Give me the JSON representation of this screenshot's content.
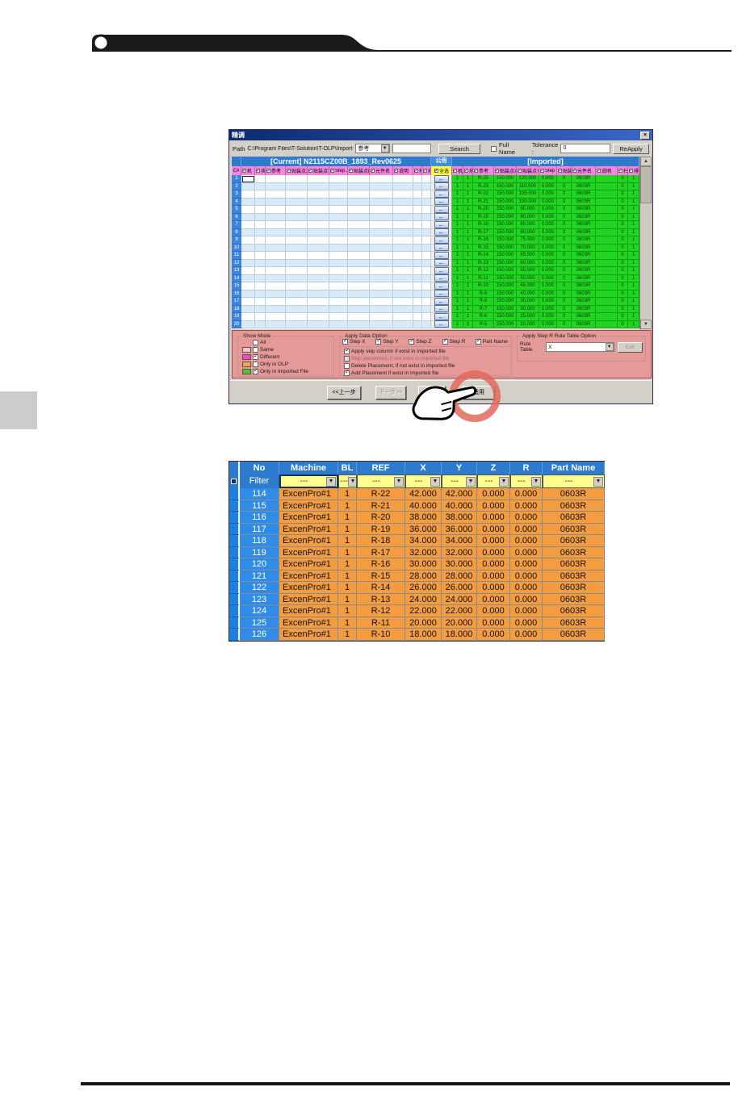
{
  "colors": {
    "imported_green": "#21d421",
    "different_magenta": "#ff44cc",
    "same_pink": "#ffc0cb",
    "only_olp_orange": "#f4a742",
    "result_row_orange": "#f49d40",
    "header_blue": "#2e7bcd",
    "filter_yellow": "#ffff8e",
    "column_header_pink": "#f886e0",
    "annotation_red": "#e2685c"
  },
  "dialog": {
    "title": "精调",
    "close_label": "×",
    "path_label": "Path",
    "path_value": "C:\\Program Files\\T-Solution\\T-OLP\\ImportStep.txt",
    "combo_value": "参考",
    "search_button": "Search",
    "full_name_label": "Full Name",
    "tolerance_label": "Tolerance :",
    "tolerance_value": "0",
    "reapply_button": "ReApply",
    "current_header": "[Current] N2115CZ00B_1893_Rev0625",
    "common_header": "公用",
    "imported_header": "[Imported]",
    "corner_label": "C#",
    "select_all_label": "全选",
    "column_labels": [
      "机",
      "块",
      "参考",
      "贴装点X",
      "贴装点Y",
      "Step Z",
      "贴装点R",
      "元件名",
      "说明",
      "扫",
      "排"
    ],
    "row_count": 20,
    "imported_rows": [
      [
        "1",
        "1",
        "R-25",
        "150.000",
        "120.000",
        "0.000",
        "0",
        "0603R",
        "",
        "0",
        "1"
      ],
      [
        "1",
        "1",
        "R-23",
        "150.000",
        "110.000",
        "0.000",
        "0",
        "0603R",
        "",
        "0",
        "1"
      ],
      [
        "1",
        "1",
        "R-22",
        "150.000",
        "105.000",
        "0.000",
        "0",
        "0603R",
        "",
        "0",
        "1"
      ],
      [
        "1",
        "1",
        "R-21",
        "150.000",
        "100.000",
        "0.000",
        "0",
        "0603R",
        "",
        "0",
        "1"
      ],
      [
        "1",
        "1",
        "R-20",
        "150.000",
        "95.000",
        "0.000",
        "0",
        "0603R",
        "",
        "0",
        "1"
      ],
      [
        "1",
        "1",
        "R-19",
        "150.000",
        "90.000",
        "0.000",
        "0",
        "0603R",
        "",
        "0",
        "1"
      ],
      [
        "1",
        "1",
        "R-18",
        "150.000",
        "85.000",
        "0.000",
        "0",
        "0603R",
        "",
        "0",
        "1"
      ],
      [
        "1",
        "1",
        "R-17",
        "150.000",
        "80.000",
        "0.000",
        "0",
        "0603R",
        "",
        "0",
        "1"
      ],
      [
        "1",
        "1",
        "R-16",
        "150.000",
        "75.000",
        "0.000",
        "0",
        "0603R",
        "",
        "0",
        "1"
      ],
      [
        "1",
        "1",
        "R-15",
        "150.000",
        "70.000",
        "0.000",
        "0",
        "0603R",
        "",
        "0",
        "1"
      ],
      [
        "1",
        "1",
        "R-14",
        "150.000",
        "65.000",
        "0.000",
        "0",
        "0603R",
        "",
        "0",
        "1"
      ],
      [
        "1",
        "1",
        "R-13",
        "150.000",
        "60.000",
        "0.000",
        "0",
        "0603R",
        "",
        "0",
        "1"
      ],
      [
        "1",
        "1",
        "R-12",
        "150.000",
        "55.000",
        "0.000",
        "0",
        "0603R",
        "",
        "0",
        "1"
      ],
      [
        "1",
        "1",
        "R-11",
        "150.000",
        "50.000",
        "0.000",
        "0",
        "0603R",
        "",
        "0",
        "1"
      ],
      [
        "1",
        "1",
        "R-10",
        "150.000",
        "45.000",
        "0.000",
        "0",
        "0603R",
        "",
        "0",
        "1"
      ],
      [
        "1",
        "1",
        "R-9",
        "150.000",
        "40.000",
        "0.000",
        "0",
        "0603R",
        "",
        "0",
        "1"
      ],
      [
        "1",
        "1",
        "R-8",
        "150.000",
        "35.000",
        "0.000",
        "0",
        "0603R",
        "",
        "0",
        "1"
      ],
      [
        "1",
        "1",
        "R-7",
        "150.000",
        "30.000",
        "0.000",
        "0",
        "0603R",
        "",
        "0",
        "1"
      ],
      [
        "1",
        "1",
        "R-6",
        "150.000",
        "25.000",
        "0.000",
        "0",
        "0603R",
        "",
        "0",
        "1"
      ],
      [
        "1",
        "1",
        "R-5",
        "150.000",
        "20.000",
        "0.000",
        "0",
        "0603R",
        "",
        "0",
        "1"
      ]
    ],
    "show_mode": {
      "legend": "Show Mode",
      "items": [
        {
          "label": "All",
          "checked": false,
          "swatch": null
        },
        {
          "label": "Same",
          "checked": false,
          "swatch": "#ffc0cb"
        },
        {
          "label": "Different",
          "checked": true,
          "swatch": "#ff44cc"
        },
        {
          "label": "Only in OLP",
          "checked": false,
          "swatch": "#f4a742"
        },
        {
          "label": "Only in Imported File",
          "checked": true,
          "swatch": "#55c42a"
        }
      ]
    },
    "apply_data_option": {
      "legend": "Apply Data Option",
      "step_checks": [
        {
          "label": "Step X",
          "checked": true
        },
        {
          "label": "Step Y",
          "checked": true
        },
        {
          "label": "Step Z",
          "checked": true
        },
        {
          "label": "Step R",
          "checked": true
        },
        {
          "label": "Part Name",
          "checked": true
        }
      ],
      "options": [
        {
          "label": "Apply skip column if exist in imported file",
          "checked": true,
          "enabled": true
        },
        {
          "label": "Skip placement, if not exist in imported file",
          "checked": false,
          "enabled": false
        },
        {
          "label": "Delete Placement, if not exist in imported file",
          "checked": false,
          "enabled": true
        },
        {
          "label": "Add Placement if exist in imported file",
          "checked": true,
          "enabled": true
        }
      ]
    },
    "rule_option": {
      "legend": "Apply Step R Rule Table Option",
      "rule_table_label": "Rule Table",
      "rule_table_value": "X",
      "edit_button": "Edit"
    },
    "buttons": {
      "back": "<<上一步",
      "next": "下一步>>",
      "cancel": "取消",
      "apply": "适用"
    }
  },
  "result_table": {
    "columns": [
      "No",
      "Machine",
      "BL",
      "REF",
      "X",
      "Y",
      "Z",
      "R",
      "Part Name"
    ],
    "filter_label": "Filter",
    "filter_values": [
      "---",
      "---",
      "---",
      "---",
      "---",
      "---",
      "---",
      "---"
    ],
    "rows": [
      [
        "114",
        "ExcenPro#1",
        "1",
        "R-22",
        "42.000",
        "42.000",
        "0.000",
        "0.000",
        "0603R"
      ],
      [
        "115",
        "ExcenPro#1",
        "1",
        "R-21",
        "40.000",
        "40.000",
        "0.000",
        "0.000",
        "0603R"
      ],
      [
        "116",
        "ExcenPro#1",
        "1",
        "R-20",
        "38.000",
        "38.000",
        "0.000",
        "0.000",
        "0603R"
      ],
      [
        "117",
        "ExcenPro#1",
        "1",
        "R-19",
        "36.000",
        "36.000",
        "0.000",
        "0.000",
        "0603R"
      ],
      [
        "118",
        "ExcenPro#1",
        "1",
        "R-18",
        "34.000",
        "34.000",
        "0.000",
        "0.000",
        "0603R"
      ],
      [
        "119",
        "ExcenPro#1",
        "1",
        "R-17",
        "32.000",
        "32.000",
        "0.000",
        "0.000",
        "0603R"
      ],
      [
        "120",
        "ExcenPro#1",
        "1",
        "R-16",
        "30.000",
        "30.000",
        "0.000",
        "0.000",
        "0603R"
      ],
      [
        "121",
        "ExcenPro#1",
        "1",
        "R-15",
        "28.000",
        "28.000",
        "0.000",
        "0.000",
        "0603R"
      ],
      [
        "122",
        "ExcenPro#1",
        "1",
        "R-14",
        "26.000",
        "26.000",
        "0.000",
        "0.000",
        "0603R"
      ],
      [
        "123",
        "ExcenPro#1",
        "1",
        "R-13",
        "24.000",
        "24.000",
        "0.000",
        "0.000",
        "0603R"
      ],
      [
        "124",
        "ExcenPro#1",
        "1",
        "R-12",
        "22.000",
        "22.000",
        "0.000",
        "0.000",
        "0603R"
      ],
      [
        "125",
        "ExcenPro#1",
        "1",
        "R-11",
        "20.000",
        "20.000",
        "0.000",
        "0.000",
        "0603R"
      ],
      [
        "126",
        "ExcenPro#1",
        "1",
        "R-10",
        "18.000",
        "18.000",
        "0.000",
        "0.000",
        "0603R"
      ]
    ]
  }
}
